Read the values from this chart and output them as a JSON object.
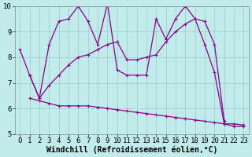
{
  "xlabel": "Windchill (Refroidissement éolien,°C)",
  "xlim": [
    -0.5,
    23.5
  ],
  "ylim": [
    5,
    10
  ],
  "xticks": [
    0,
    1,
    2,
    3,
    4,
    5,
    6,
    7,
    8,
    9,
    10,
    11,
    12,
    13,
    14,
    15,
    16,
    17,
    18,
    19,
    20,
    21,
    22,
    23
  ],
  "yticks": [
    5,
    6,
    7,
    8,
    9,
    10
  ],
  "background_color": "#c2ecec",
  "grid_color": "#a0d0d0",
  "line_color": "#880088",
  "line1_x": [
    0,
    1,
    2,
    3,
    4,
    5,
    6,
    7,
    8,
    9,
    10,
    11,
    12,
    13,
    14,
    15,
    16,
    17,
    18,
    19,
    20,
    21,
    22,
    23
  ],
  "line1_y": [
    8.3,
    7.3,
    6.4,
    8.5,
    9.4,
    9.5,
    10.0,
    9.4,
    8.5,
    10.1,
    7.5,
    7.3,
    7.3,
    7.3,
    9.5,
    8.7,
    9.5,
    10.0,
    9.5,
    8.5,
    7.4,
    5.4,
    5.3,
    5.3
  ],
  "line2_x": [
    1,
    2,
    3,
    4,
    5,
    6,
    7,
    8,
    9,
    10,
    11,
    12,
    13,
    14,
    15,
    16,
    17,
    18,
    19,
    20,
    21
  ],
  "line2_y": [
    7.3,
    6.4,
    6.9,
    7.3,
    7.7,
    8.0,
    8.1,
    8.3,
    8.5,
    8.6,
    7.9,
    7.9,
    8.0,
    8.1,
    8.6,
    9.0,
    9.3,
    9.5,
    9.4,
    8.5,
    5.5
  ],
  "line3_x": [
    1,
    2,
    3,
    4,
    5,
    6,
    7,
    8,
    9,
    10,
    11,
    12,
    13,
    14,
    15,
    16,
    17,
    18,
    19,
    20,
    21,
    22,
    23
  ],
  "line3_y": [
    6.4,
    6.3,
    6.2,
    6.1,
    6.1,
    6.1,
    6.1,
    6.05,
    6.0,
    5.95,
    5.9,
    5.85,
    5.8,
    5.75,
    5.7,
    5.65,
    5.6,
    5.55,
    5.5,
    5.45,
    5.4,
    5.4,
    5.35
  ],
  "tick_fontsize": 6.5,
  "xlabel_fontsize": 7.0
}
